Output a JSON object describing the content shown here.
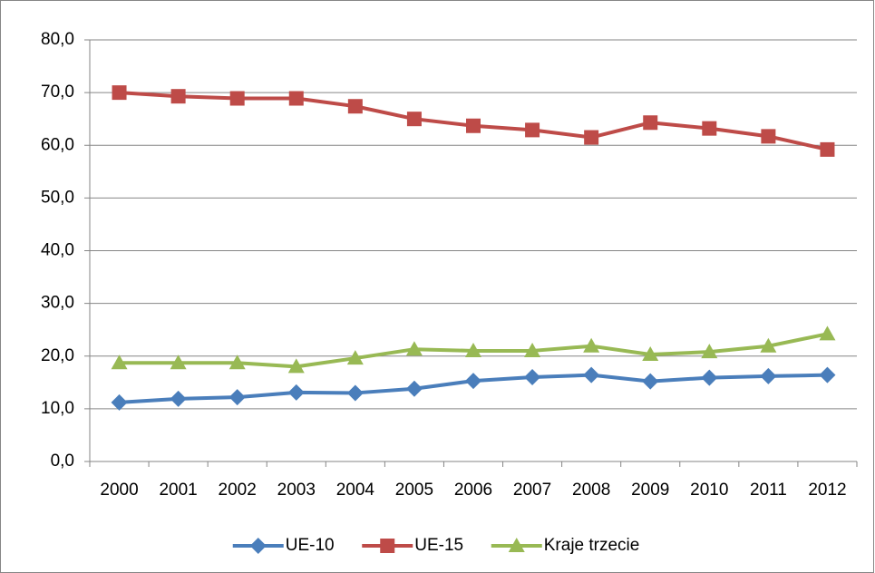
{
  "chart_data": {
    "type": "line",
    "categories": [
      "2000",
      "2001",
      "2002",
      "2003",
      "2004",
      "2005",
      "2006",
      "2007",
      "2008",
      "2009",
      "2010",
      "2011",
      "2012"
    ],
    "series": [
      {
        "name": "UE-10",
        "color": "#4a7ebb",
        "marker": "diamond",
        "values": [
          11.2,
          11.9,
          12.2,
          13.1,
          13.0,
          13.8,
          15.3,
          16.0,
          16.4,
          15.2,
          15.9,
          16.2,
          16.4
        ]
      },
      {
        "name": "UE-15",
        "color": "#be4b48",
        "marker": "square",
        "values": [
          70.0,
          69.3,
          68.9,
          68.9,
          67.4,
          65.0,
          63.7,
          62.9,
          61.5,
          64.3,
          63.2,
          61.7,
          59.2
        ]
      },
      {
        "name": "Kraje trzecie",
        "color": "#98b954",
        "marker": "triangle",
        "values": [
          18.7,
          18.7,
          18.7,
          18.0,
          19.6,
          21.3,
          21.0,
          21.0,
          21.9,
          20.3,
          20.8,
          21.9,
          24.2
        ]
      }
    ],
    "ylim": [
      0,
      80
    ],
    "yticks": [
      {
        "value": 0,
        "label": "0,0"
      },
      {
        "value": 10,
        "label": "10,0"
      },
      {
        "value": 20,
        "label": "20,0"
      },
      {
        "value": 30,
        "label": "30,0"
      },
      {
        "value": 40,
        "label": "40,0"
      },
      {
        "value": 50,
        "label": "50,0"
      },
      {
        "value": 60,
        "label": "60,0"
      },
      {
        "value": 70,
        "label": "70,0"
      },
      {
        "value": 80,
        "label": "80,0"
      }
    ],
    "grid": true,
    "legend": "bottom"
  }
}
